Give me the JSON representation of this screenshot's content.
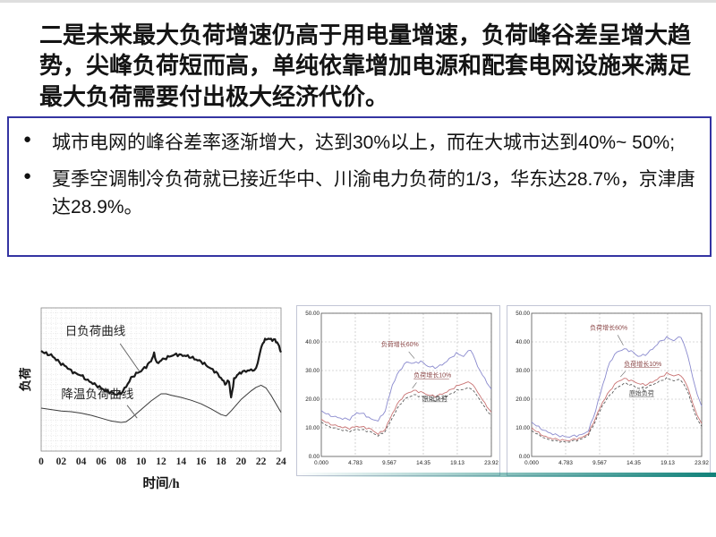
{
  "slide": {
    "title": "二是未来最大负荷增速仍高于用电量增速，负荷峰谷差呈增大趋势，尖峰负荷短而高，单纯依靠增加电源和配套电网设施来满足最大负荷需要付出极大经济代价。",
    "bullets": [
      "城市电网的峰谷差率逐渐增大，达到30%以上，而在大城市达到40%~ 50%;",
      "夏季空调制冷负荷就已接近华中、川渝电力负荷的1/3，华东达28.7%，京津唐达28.9%。"
    ]
  },
  "colors": {
    "title_text": "#141414",
    "box_border": "#3434a2",
    "accent_teal": "#11827a",
    "curve_blue": "#8a8ace",
    "curve_red": "#c97373",
    "curve_dark": "#4a4a4a"
  },
  "chart_data": [
    {
      "type": "line",
      "title": "",
      "xlabel": "时间/h",
      "ylabel": "负荷",
      "xlim": [
        0,
        24
      ],
      "ylim": [
        0,
        100
      ],
      "grid": "fine-dot",
      "font": "serif",
      "xticks": {
        "values": [
          0,
          2,
          4,
          6,
          8,
          10,
          12,
          14,
          16,
          18,
          20,
          22,
          24
        ],
        "labels": [
          "0",
          "02",
          "04",
          "06",
          "08",
          "10",
          "12",
          "14",
          "16",
          "18",
          "20",
          "22",
          "24"
        ]
      },
      "yticks": {
        "values": [],
        "labels": []
      },
      "series": [
        {
          "name": "日负荷曲线",
          "color": "#1a1a1a",
          "width": 2.2,
          "noise": 1.1,
          "x": [
            0,
            0.5,
            1,
            1.5,
            2,
            2.5,
            3,
            3.5,
            4,
            4.5,
            5,
            5.5,
            6,
            6.5,
            7,
            7.5,
            8,
            8.5,
            9,
            9.5,
            10,
            10.5,
            11,
            11.3,
            11.6,
            12,
            12.5,
            13,
            13.5,
            14,
            14.5,
            15,
            15.5,
            16,
            16.5,
            17,
            17.5,
            18,
            18.4,
            18.8,
            19,
            19.3,
            19.6,
            20,
            20.5,
            21,
            21.5,
            22,
            22.3,
            22.6,
            23,
            23.4,
            23.7,
            24
          ],
          "y": [
            70,
            68,
            67,
            64,
            61,
            59,
            56,
            54,
            53,
            50,
            48,
            46,
            44,
            42,
            41,
            39.5,
            40.5,
            45,
            51,
            54,
            56,
            59,
            63,
            68,
            61,
            63.5,
            65,
            66.5,
            67.5,
            67,
            66.5,
            65.5,
            64,
            62.5,
            60,
            57.5,
            55,
            51,
            47,
            49,
            37,
            50,
            53,
            55,
            56,
            56.5,
            57,
            72,
            77,
            78.5,
            78,
            77.5,
            75,
            69
          ]
        },
        {
          "name": "降温负荷曲线",
          "color": "#3a3a3a",
          "width": 1,
          "noise": 0,
          "x": [
            0,
            1,
            2,
            3,
            4,
            5,
            6,
            6.5,
            7,
            7.5,
            8,
            8.5,
            9,
            10,
            11,
            12,
            12.5,
            13,
            14,
            15,
            16,
            17,
            18,
            18.5,
            19,
            20,
            21,
            21.5,
            22,
            22.5,
            23,
            23.5,
            24
          ],
          "y": [
            30,
            29,
            28,
            27.5,
            26.5,
            25,
            23,
            22,
            21,
            20.5,
            20,
            20.5,
            23,
            29,
            35,
            40,
            40,
            39,
            37.5,
            35.5,
            33,
            29.5,
            25.5,
            24.5,
            28,
            36,
            42,
            44.5,
            46,
            44,
            39,
            33,
            27
          ]
        }
      ],
      "annotations": [
        {
          "text": "日负荷曲线",
          "x": 2.4,
          "y": 81,
          "size": 13.5,
          "color": "#222222",
          "leader": [
            7.9,
            75,
            9.8,
            56
          ]
        },
        {
          "text": "降温负荷曲线",
          "x": 2.0,
          "y": 37,
          "size": 13.5,
          "color": "#222222",
          "leader": [
            8.6,
            32,
            9.6,
            23
          ]
        }
      ]
    },
    {
      "type": "line",
      "title": "",
      "xlabel": "",
      "ylabel": "",
      "xlim": [
        0,
        23.92
      ],
      "ylim": [
        0,
        50
      ],
      "grid": "dash",
      "font": "sans",
      "xticks": {
        "values": [
          0,
          4.783,
          9.567,
          14.35,
          19.13,
          23.92
        ],
        "labels": [
          "0.000",
          "4.783",
          "9.567",
          "14.35",
          "19.13",
          "23.92"
        ]
      },
      "yticks": {
        "values": [
          0,
          10,
          20,
          30,
          40,
          50
        ],
        "labels": [
          "0.00",
          "10.00",
          "20.00",
          "30.00",
          "40.00",
          "50.00"
        ]
      },
      "x_shared": [
        0,
        1,
        2,
        3,
        4,
        5,
        6,
        7,
        8,
        9,
        10,
        11,
        12,
        13,
        14,
        15,
        16,
        17,
        18,
        19,
        20,
        21,
        22,
        23,
        23.92
      ],
      "series": [
        {
          "name": "负荷增长60%",
          "color": "#8a8ace",
          "width": 0.9,
          "noise": 0.45,
          "y": [
            16,
            14.5,
            13.8,
            13.2,
            13,
            15.3,
            14.8,
            13,
            12.5,
            16,
            25,
            30,
            33,
            32.5,
            33.2,
            31.5,
            31,
            32,
            34,
            36,
            35,
            37.5,
            31.5,
            27,
            23.5
          ]
        },
        {
          "name": "负荷增长10%",
          "color": "#c97373",
          "width": 0.9,
          "noise": 0.4,
          "y": [
            13,
            11.5,
            10.8,
            10.2,
            9.8,
            10.5,
            10.2,
            9.5,
            7.8,
            9.5,
            15,
            19.5,
            22,
            23,
            22.5,
            21.5,
            21,
            21.8,
            23,
            24.5,
            25.5,
            26,
            22.5,
            18.5,
            15.5
          ]
        },
        {
          "name": "原始负荷",
          "color": "#4a4a4a",
          "width": 0.8,
          "noise": 0.35,
          "dash": "3 2",
          "y": [
            12,
            10.5,
            9.8,
            9.2,
            8.8,
            9.5,
            9.2,
            8.5,
            7.2,
            8.8,
            13.5,
            18,
            20.5,
            21.5,
            21,
            20,
            19.5,
            20.3,
            21.5,
            23,
            23.5,
            24,
            21,
            17,
            14.2
          ]
        }
      ],
      "annotations": [
        {
          "text": "负荷增长60%",
          "x": 8.4,
          "y": 38.5,
          "size": 7,
          "color": "#8a4545",
          "leader": [
            12.3,
            36.6,
            13.1,
            34.2
          ]
        },
        {
          "text": "负荷增长10%",
          "x": 13.0,
          "y": 27.6,
          "size": 7,
          "color": "#8a4545",
          "underline": true,
          "leader": [
            13.4,
            25.8,
            12.8,
            23.8
          ]
        },
        {
          "text": "原始负荷",
          "x": 14.2,
          "y": 19.6,
          "size": 7,
          "color": "#4a4a4a",
          "underline": true,
          "leader": [
            16.8,
            20.2,
            16.3,
            21.0
          ]
        }
      ]
    },
    {
      "type": "line",
      "title": "",
      "xlabel": "",
      "ylabel": "",
      "xlim": [
        0,
        23.92
      ],
      "ylim": [
        0,
        50
      ],
      "grid": "dash",
      "font": "sans",
      "xticks": {
        "values": [
          0,
          4.783,
          9.567,
          14.35,
          19.13,
          23.92
        ],
        "labels": [
          "0.000",
          "4.783",
          "9.567",
          "14.35",
          "19.13",
          "23.92"
        ]
      },
      "yticks": {
        "values": [
          0,
          10,
          20,
          30,
          40,
          50
        ],
        "labels": [
          "0.00",
          "10.00",
          "20.00",
          "30.00",
          "40.00",
          "50.00"
        ]
      },
      "x_shared": [
        0,
        1,
        2,
        3,
        4,
        5,
        6,
        7,
        8,
        9,
        10,
        11,
        12,
        13,
        14,
        15,
        16,
        17,
        18,
        19,
        20,
        21,
        22,
        23,
        23.92
      ],
      "series": [
        {
          "name": "负荷增长60%",
          "color": "#8a8ace",
          "width": 0.9,
          "noise": 0.45,
          "y": [
            12,
            10.2,
            8.8,
            7.8,
            7.2,
            6.8,
            7.2,
            7.5,
            9,
            16,
            25,
            33,
            36.5,
            37.5,
            36.8,
            35,
            35.5,
            37.5,
            40,
            41.5,
            40.5,
            42,
            35,
            24,
            17.5
          ]
        },
        {
          "name": "负荷增长10%",
          "color": "#c97373",
          "width": 0.9,
          "noise": 0.4,
          "y": [
            10,
            8.2,
            6.8,
            6.2,
            5.8,
            5.5,
            6,
            6.5,
            8,
            13.5,
            19,
            23,
            26,
            27.2,
            26.5,
            25.5,
            25,
            26,
            27.5,
            29,
            28.2,
            28.5,
            24,
            16,
            11.5
          ]
        },
        {
          "name": "原始负荷",
          "color": "#4a4a4a",
          "width": 0.8,
          "noise": 0.35,
          "dash": "3 2",
          "y": [
            9,
            7.5,
            6.2,
            5.6,
            5.2,
            5,
            5.5,
            6,
            7.5,
            12.5,
            18,
            21.5,
            24,
            25.5,
            25,
            23.8,
            24,
            25,
            26.2,
            27.3,
            26.5,
            26.8,
            22.5,
            14.5,
            10.5
          ]
        }
      ],
      "annotations": [
        {
          "text": "负荷增长60%",
          "x": 8.2,
          "y": 44.2,
          "size": 7,
          "color": "#8a4545",
          "leader": [
            12.1,
            42.4,
            12.9,
            38.8
          ]
        },
        {
          "text": "负荷增长10%",
          "x": 13.0,
          "y": 31.6,
          "size": 7,
          "color": "#8a4545",
          "underline": true,
          "leader": [
            13.2,
            29.8,
            12.5,
            27.8
          ]
        },
        {
          "text": "原始负荷",
          "x": 13.7,
          "y": 21.4,
          "size": 7,
          "color": "#4a4a4a",
          "underline": true,
          "leader": [
            16.0,
            22.2,
            15.5,
            24.2
          ]
        }
      ]
    }
  ]
}
